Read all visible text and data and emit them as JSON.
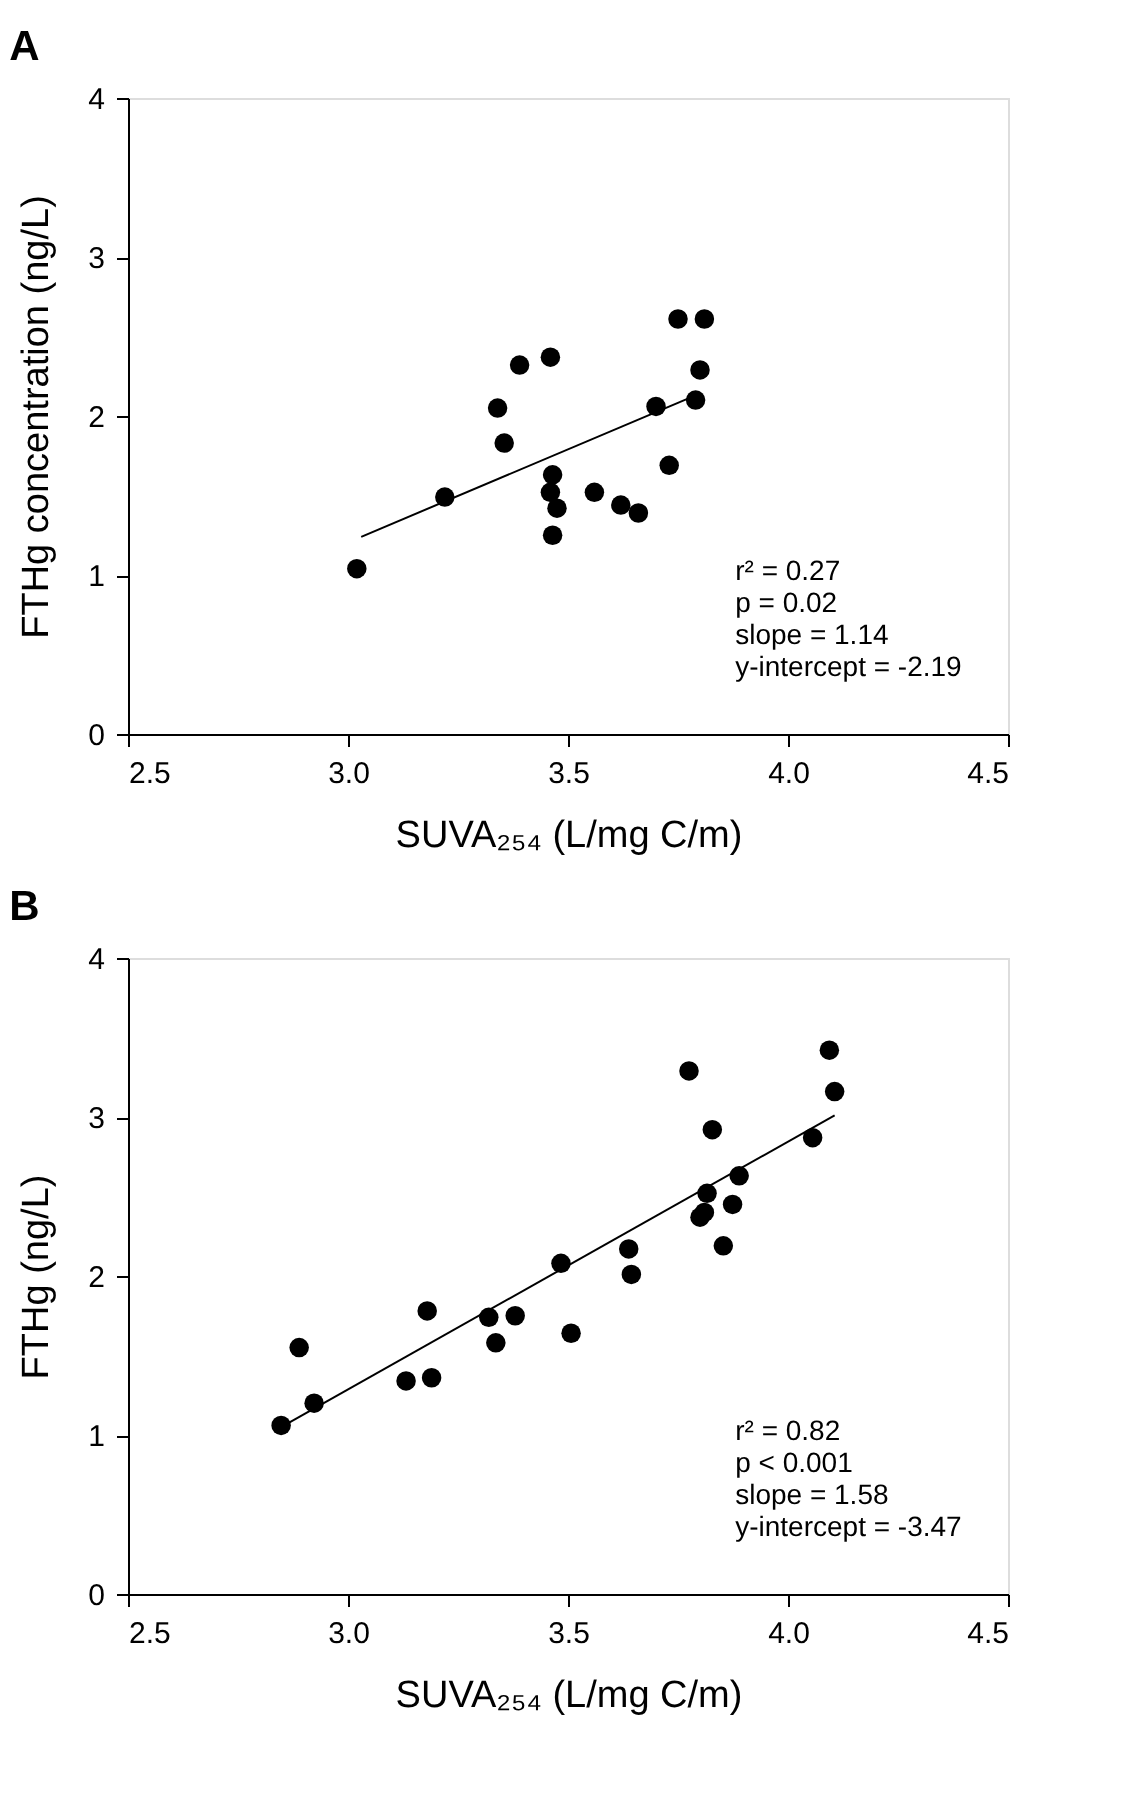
{
  "chart_data": [
    {
      "type": "scatter",
      "title": "A",
      "xlabel": "SUVA₂₅₄ (L/mg C/m)",
      "ylabel": "FTHg concentration (ng/L)",
      "xlim": [
        2.5,
        4.5
      ],
      "xticks": [
        {
          "value": 2.5,
          "label": "2.5"
        },
        {
          "value": 3.0,
          "label": "3.0"
        },
        {
          "value": 3.5,
          "label": "3.5"
        },
        {
          "value": 4.0,
          "label": "4.0"
        },
        {
          "value": 4.5,
          "label": "4.5"
        }
      ],
      "ylim": [
        0,
        4
      ],
      "yticks": [
        0,
        1,
        2,
        3,
        4
      ],
      "grid": false,
      "annotations": [
        "r² = 0.27",
        "p = 0.02",
        "slope = 1.14",
        "y-intercept = -2.19"
      ],
      "series": [
        {
          "marker": "circle",
          "color": "#000000",
          "x": [
            3.02,
            3.22,
            3.34,
            3.355,
            3.39,
            3.46,
            3.465,
            3.46,
            3.475,
            3.465,
            3.56,
            3.62,
            3.66,
            3.7,
            3.73,
            3.75,
            3.81,
            3.8,
            3.79
          ],
          "values": [
            1.04,
            1.49,
            2.05,
            1.83,
            2.32,
            2.37,
            1.63,
            1.52,
            1.42,
            1.25,
            1.52,
            1.44,
            1.39,
            2.06,
            1.69,
            2.61,
            2.61,
            2.29,
            2.1
          ]
        },
        {
          "type": "line",
          "marker": "none",
          "color": "#000000",
          "line_style": "solid",
          "x": [
            3.03,
            3.79
          ],
          "values": [
            1.24,
            2.13
          ]
        }
      ]
    },
    {
      "type": "scatter",
      "title": "B",
      "xlabel": "SUVA₂₅₄ (L/mg C/m)",
      "ylabel": "FTHg (ng/L)",
      "xlim": [
        2.5,
        4.5
      ],
      "xticks": [
        {
          "value": 2.5,
          "label": "2.5"
        },
        {
          "value": 3.0,
          "label": "3.0"
        },
        {
          "value": 3.5,
          "label": "3.5"
        },
        {
          "value": 4.0,
          "label": "4.0"
        },
        {
          "value": 4.5,
          "label": "4.5"
        }
      ],
      "ylim": [
        0,
        4
      ],
      "yticks": [
        0,
        1,
        2,
        3,
        4
      ],
      "grid": false,
      "annotations": [
        "r² = 0.82",
        "p < 0.001",
        "slope = 1.58",
        "y-intercept = -3.47"
      ],
      "series": [
        {
          "marker": "circle",
          "color": "#000000",
          "x": [
            2.848,
            2.889,
            2.923,
            3.132,
            3.18,
            3.19,
            3.32,
            3.336,
            3.38,
            3.484,
            3.507,
            3.638,
            3.644,
            3.775,
            3.8,
            3.81,
            3.816,
            3.828,
            3.853,
            3.874,
            3.889,
            4.056,
            4.094,
            4.106
          ],
          "values": [
            1.06,
            1.55,
            1.2,
            1.34,
            1.78,
            1.36,
            1.74,
            1.58,
            1.75,
            2.08,
            1.64,
            2.17,
            2.01,
            3.29,
            2.37,
            2.4,
            2.52,
            2.92,
            2.19,
            2.45,
            2.63,
            2.87,
            3.42,
            3.16
          ]
        },
        {
          "type": "line",
          "marker": "none",
          "color": "#000000",
          "line_style": "solid",
          "x": [
            2.848,
            4.106
          ],
          "values": [
            1.05,
            3.01
          ]
        }
      ]
    }
  ]
}
